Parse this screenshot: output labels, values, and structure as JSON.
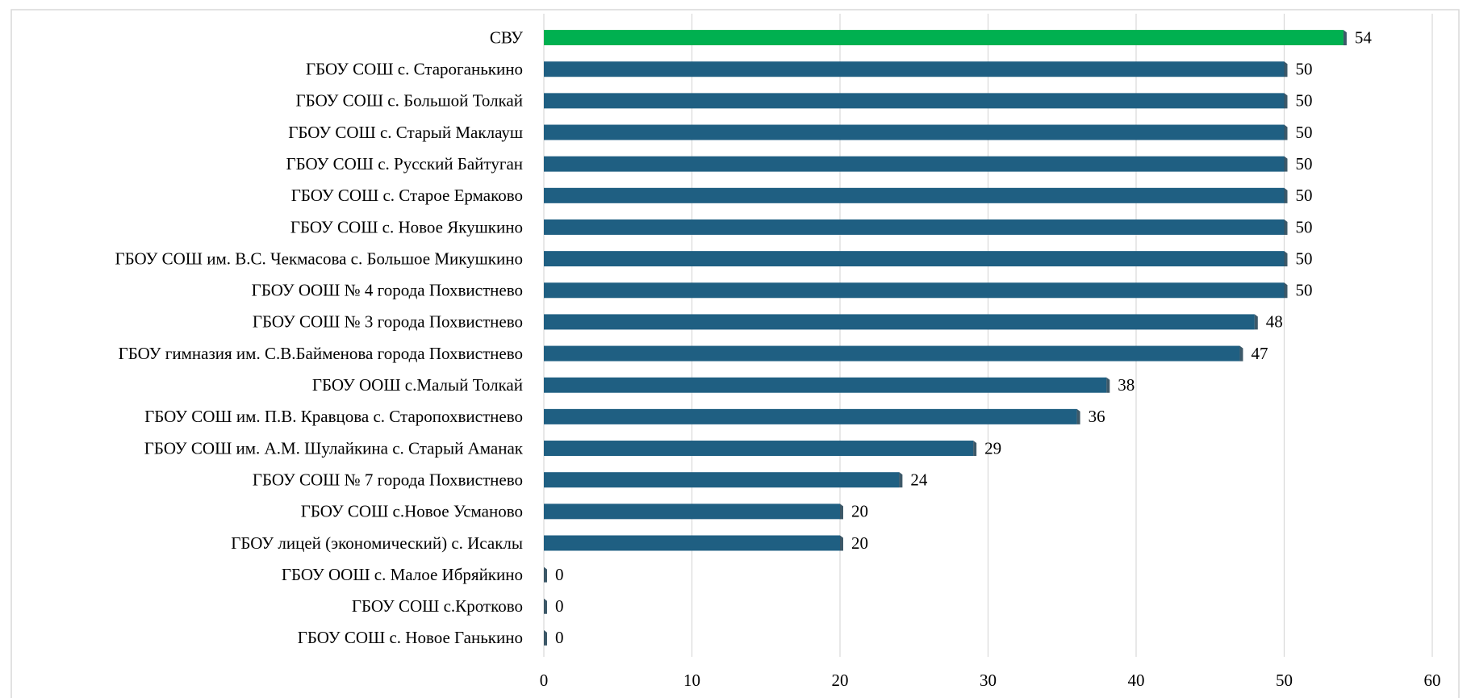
{
  "chart_data": {
    "type": "barh",
    "categories": [
      "СВУ",
      "ГБОУ СОШ с. Староганькино",
      "ГБОУ СОШ с. Большой Толкай",
      "ГБОУ СОШ с. Старый Маклауш",
      "ГБОУ СОШ с. Русский Байтуган",
      "ГБОУ СОШ с. Старое Ермаково",
      "ГБОУ СОШ с. Новое Якушкино",
      "ГБОУ СОШ им. В.С. Чекмасова с. Большое Микушкино",
      "ГБОУ ООШ № 4 города Похвистнево",
      "ГБОУ СОШ № 3 города Похвистнево",
      "ГБОУ гимназия им. С.В.Байменова города Похвистнево",
      "ГБОУ ООШ с.Малый Толкай",
      "ГБОУ СОШ им. П.В. Кравцова с. Старопохвистнево",
      "ГБОУ СОШ им. А.М. Шулайкина  с. Старый Аманак",
      "ГБОУ СОШ № 7 города Похвистнево",
      "ГБОУ СОШ с.Новое Усманово",
      "ГБОУ лицей (экономический) с. Исаклы",
      "ГБОУ ООШ с. Малое Ибряйкино",
      "ГБОУ СОШ с.Кротково",
      "ГБОУ СОШ с. Новое Ганькино"
    ],
    "values": [
      54,
      50,
      50,
      50,
      50,
      50,
      50,
      50,
      50,
      48,
      47,
      38,
      36,
      29,
      24,
      20,
      20,
      0,
      0,
      0
    ],
    "colors": [
      "#00b050",
      "#1f5f82",
      "#1f5f82",
      "#1f5f82",
      "#1f5f82",
      "#1f5f82",
      "#1f5f82",
      "#1f5f82",
      "#1f5f82",
      "#1f5f82",
      "#1f5f82",
      "#1f5f82",
      "#1f5f82",
      "#1f5f82",
      "#1f5f82",
      "#1f5f82",
      "#1f5f82",
      "#1f5f82",
      "#1f5f82",
      "#1f5f82"
    ],
    "xlim": [
      0,
      60
    ],
    "xticks": [
      0,
      10,
      20,
      30,
      40,
      50,
      60
    ],
    "grid": true
  }
}
